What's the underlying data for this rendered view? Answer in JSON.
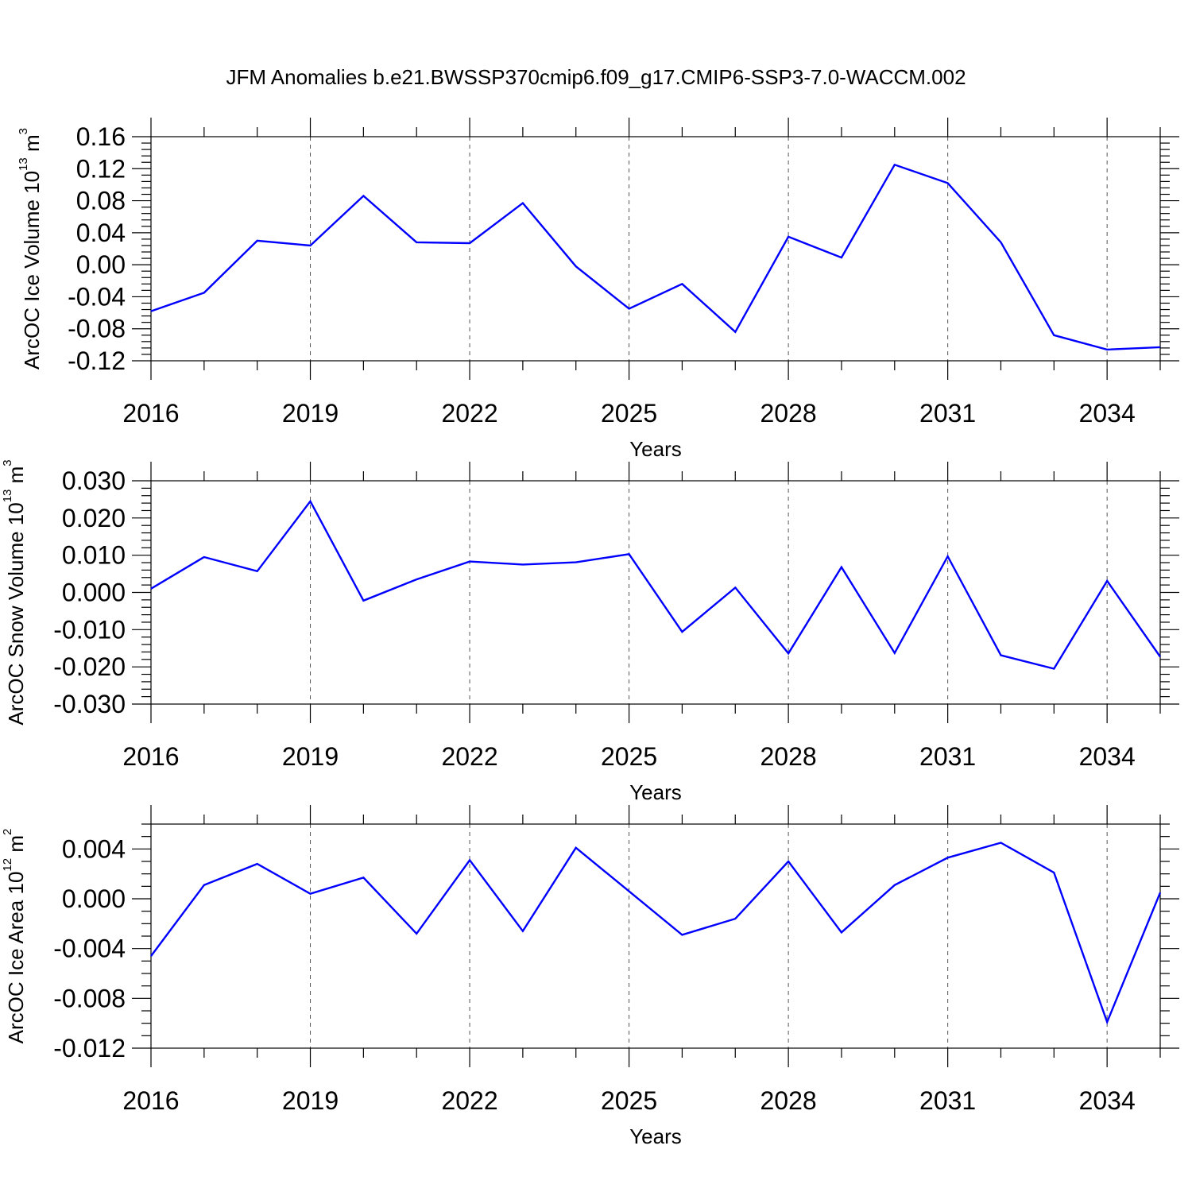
{
  "title": "JFM Anomalies b.e21.BWSSP370cmip6.f09_g17.CMIP6-SSP3-7.0-WACCM.002",
  "colors": {
    "line": "#0000ff",
    "axis": "#000000",
    "grid": "#555555"
  },
  "chart_data": [
    {
      "type": "line",
      "name": "ice-volume",
      "ylabel": "ArcOC Ice Volume 10",
      "ylabel_exp": "13",
      "ylabel_unit": " m",
      "ylabel_unit_exp": "3",
      "xlabel": "Years",
      "x": [
        2016,
        2017,
        2018,
        2019,
        2020,
        2021,
        2022,
        2023,
        2024,
        2025,
        2026,
        2027,
        2028,
        2029,
        2030,
        2031,
        2032,
        2033,
        2034,
        2035
      ],
      "values": [
        -0.058,
        -0.035,
        0.03,
        0.024,
        0.086,
        0.028,
        0.027,
        0.077,
        -0.002,
        -0.055,
        -0.024,
        -0.084,
        0.035,
        0.009,
        0.125,
        0.102,
        0.028,
        -0.088,
        -0.106,
        -0.103
      ],
      "xlim": [
        2016,
        2035
      ],
      "ylim": [
        -0.12,
        0.16
      ],
      "xticks": [
        "2016",
        "2019",
        "2022",
        "2025",
        "2028",
        "2031",
        "2034"
      ],
      "yticks": [
        "-0.12",
        "-0.08",
        "-0.04",
        "0.00",
        "0.04",
        "0.08",
        "0.12",
        "0.16"
      ]
    },
    {
      "type": "line",
      "name": "snow-volume",
      "ylabel": "ArcOC Snow Volume 10",
      "ylabel_exp": "13",
      "ylabel_unit": " m",
      "ylabel_unit_exp": "3",
      "xlabel": "Years",
      "x": [
        2016,
        2017,
        2018,
        2019,
        2020,
        2021,
        2022,
        2023,
        2024,
        2025,
        2026,
        2027,
        2028,
        2029,
        2030,
        2031,
        2032,
        2033,
        2034,
        2035
      ],
      "values": [
        0.001,
        0.0095,
        0.0057,
        0.0245,
        -0.0022,
        0.0035,
        0.0083,
        0.0075,
        0.0081,
        0.0103,
        -0.0106,
        0.0013,
        -0.0164,
        0.0068,
        -0.0163,
        0.0097,
        -0.0169,
        -0.0205,
        0.0031,
        -0.0173
      ],
      "xlim": [
        2016,
        2035
      ],
      "ylim": [
        -0.03,
        0.03
      ],
      "xticks": [
        "2016",
        "2019",
        "2022",
        "2025",
        "2028",
        "2031",
        "2034"
      ],
      "yticks": [
        "-0.030",
        "-0.020",
        "-0.010",
        "0.000",
        "0.010",
        "0.020",
        "0.030"
      ]
    },
    {
      "type": "line",
      "name": "ice-area",
      "ylabel": "ArcOC Ice Area 10",
      "ylabel_exp": "12",
      "ylabel_unit": " m",
      "ylabel_unit_exp": "2",
      "xlabel": "Years",
      "x": [
        2016,
        2017,
        2018,
        2019,
        2020,
        2021,
        2022,
        2023,
        2024,
        2025,
        2026,
        2027,
        2028,
        2029,
        2030,
        2031,
        2032,
        2033,
        2034,
        2035
      ],
      "values": [
        -0.0046,
        0.0011,
        0.0028,
        0.0004,
        0.0017,
        -0.0028,
        0.0031,
        -0.0026,
        0.0041,
        0.0006,
        -0.0029,
        -0.0016,
        0.003,
        -0.0027,
        0.0011,
        0.0033,
        0.0045,
        0.0021,
        -0.0099,
        0.0005
      ],
      "xlim": [
        2016,
        2035
      ],
      "ylim": [
        -0.012,
        0.006
      ],
      "xticks": [
        "2016",
        "2019",
        "2022",
        "2025",
        "2028",
        "2031",
        "2034"
      ],
      "yticks": [
        "-0.012",
        "-0.008",
        "-0.004",
        "0.000",
        "0.004"
      ]
    }
  ]
}
